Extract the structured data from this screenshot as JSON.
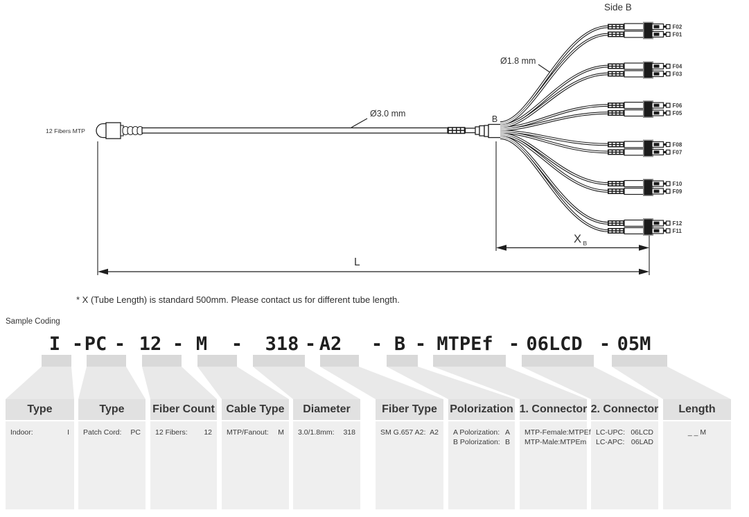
{
  "diagram": {
    "side_label": "Side B",
    "mtp_label": "12 Fibers MTP",
    "breakout_label": "B",
    "cable_diameter_label": "Ø3.0 mm",
    "tube_diameter_label": "Ø1.8 mm",
    "tube_length_x": "X",
    "tube_length_sub": "B",
    "length_label": "L",
    "fiber_labels": [
      [
        "F02",
        "F01"
      ],
      [
        "F04",
        "F03"
      ],
      [
        "F06",
        "F05"
      ],
      [
        "F08",
        "F07"
      ],
      [
        "F10",
        "F09"
      ],
      [
        "F12",
        "F11"
      ]
    ]
  },
  "note": "* X (Tube Length) is standard 500mm. Please contact us for different tube length.",
  "sample_coding": {
    "label": "Sample Coding",
    "segments": [
      "I",
      "PC",
      "12",
      "M",
      "318",
      "A2",
      "B",
      "MTPEf",
      "06LCD",
      "05M"
    ],
    "separator": "-"
  },
  "table": {
    "columns": [
      {
        "header": "Type",
        "rows": [
          {
            "label": "Indoor:",
            "code": "I"
          }
        ]
      },
      {
        "header": "Type",
        "rows": [
          {
            "label": "Patch Cord:",
            "code": "PC"
          }
        ]
      },
      {
        "header": "Fiber Count",
        "rows": [
          {
            "label": "12 Fibers:",
            "code": "12"
          }
        ]
      },
      {
        "header": "Cable Type",
        "rows": [
          {
            "label": "MTP/Fanout:",
            "code": "M"
          }
        ]
      },
      {
        "header": "Diameter",
        "rows": [
          {
            "label": "3.0/1.8mm:",
            "code": "318"
          }
        ]
      },
      {
        "header": "Fiber Type",
        "rows": [
          {
            "label": "SM G.657 A2:",
            "code": "A2"
          }
        ]
      },
      {
        "header": "Polorization",
        "rows": [
          {
            "label": "A Polorization:",
            "code": "A"
          },
          {
            "label": "B Polorization:",
            "code": "B"
          }
        ]
      },
      {
        "header": "1. Connector",
        "rows": [
          {
            "label": "MTP-Female:",
            "code": "MTPEf"
          },
          {
            "label": "MTP-Male:",
            "code": "MTPEm"
          }
        ]
      },
      {
        "header": "2. Connector",
        "rows": [
          {
            "label": "LC-UPC:",
            "code": "06LCD"
          },
          {
            "label": "LC-APC:",
            "code": "06LAD"
          }
        ]
      },
      {
        "header": "Length",
        "rows": [
          {
            "label": "",
            "code": "_ _ M"
          }
        ]
      }
    ]
  },
  "colors": {
    "line": "#1e1e1e",
    "text": "#333333",
    "header_bg": "#e1e1e1",
    "body_bg": "#efefef",
    "code_box_bg": "#d9d9d9",
    "funnel_bg": "#e9e9e9"
  }
}
